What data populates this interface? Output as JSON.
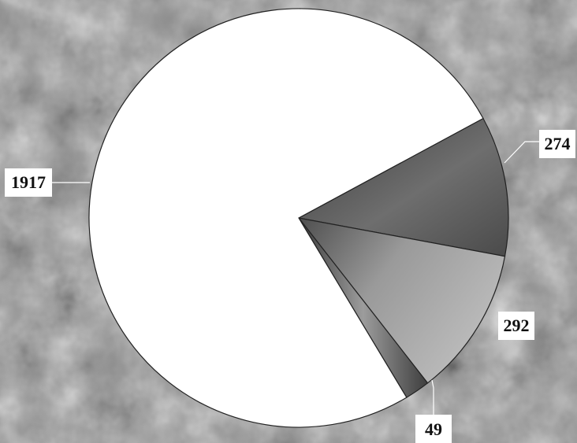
{
  "chart_data": {
    "type": "pie",
    "values": [
      274,
      292,
      49,
      1917
    ],
    "data_labels": [
      "274",
      "292",
      "49",
      "1917"
    ],
    "slice_colors": [
      "#5a5a5a",
      "#9a9a9a",
      "#6e6e6e",
      "#ffffff"
    ],
    "start_angle_deg": -28.4,
    "direction": "clockwise",
    "legend": "none",
    "title": ""
  }
}
